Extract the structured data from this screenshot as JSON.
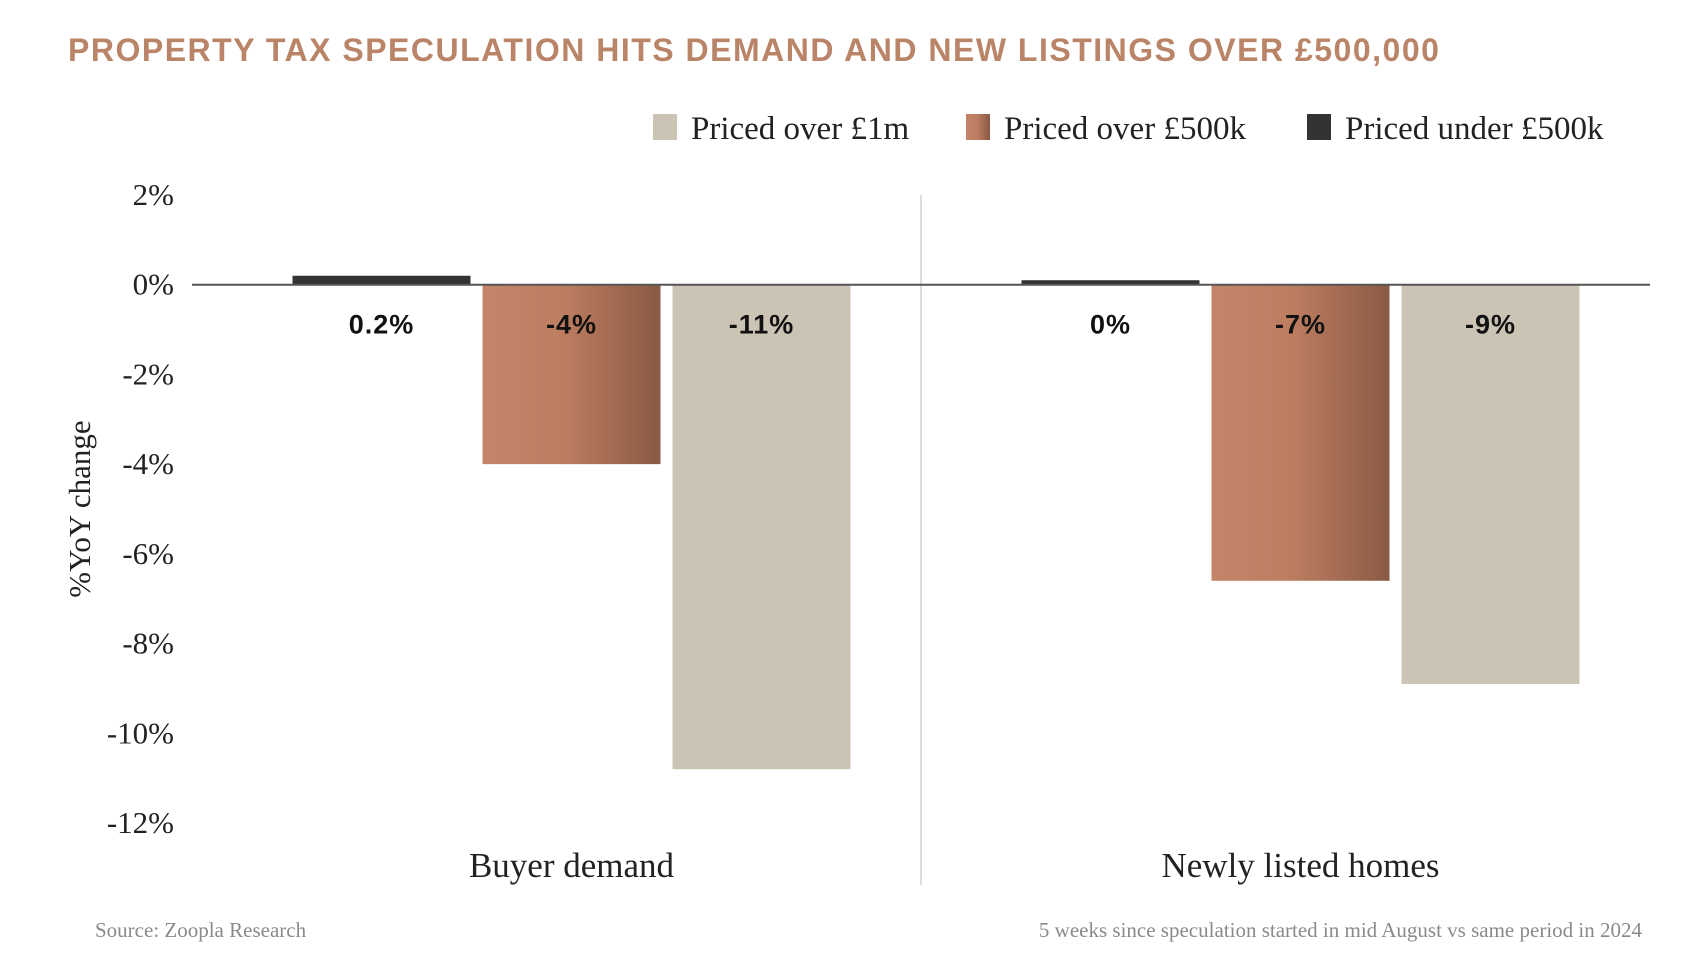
{
  "title": "PROPERTY TAX SPECULATION HITS DEMAND AND NEW LISTINGS OVER £500,000",
  "source": "Source: Zoopla Research",
  "note": "5 weeks since speculation started in mid August vs same period in 2024",
  "colors": {
    "title": "#b98467",
    "over1m": "#cbc4b4",
    "over500k_light": "#c4846a",
    "over500k_dark": "#8a5a44",
    "under500k": "#333333",
    "axis": "#555555",
    "divider": "#dddddd"
  },
  "chart_data": {
    "type": "bar",
    "title": "PROPERTY TAX SPECULATION HITS DEMAND AND NEW LISTINGS OVER £500,000",
    "xlabel": "",
    "ylabel": "%YoY change",
    "ylim": [
      -12,
      2
    ],
    "yticks": [
      2,
      0,
      -2,
      -4,
      -6,
      -8,
      -10,
      -12
    ],
    "ytick_labels": [
      "2%",
      "0%",
      "-2%",
      "-4%",
      "-6%",
      "-8%",
      "-10%",
      "-12%"
    ],
    "categories": [
      "Buyer demand",
      "Newly listed homes"
    ],
    "legend_position": "top-right",
    "series": [
      {
        "name": "Priced under £500k",
        "values": [
          0.2,
          0.1
        ],
        "labels": [
          "0.2%",
          "0%"
        ],
        "color": "#333333"
      },
      {
        "name": "Priced over £500k",
        "values": [
          -4.0,
          -6.6
        ],
        "labels": [
          "-4%",
          "-7%"
        ],
        "color": "#c4846a"
      },
      {
        "name": "Priced over £1m",
        "values": [
          -10.8,
          -8.9
        ],
        "labels": [
          "-11%",
          "-9%"
        ],
        "color": "#cbc4b4"
      }
    ],
    "legend_order": [
      "Priced over £1m",
      "Priced over £500k",
      "Priced under £500k"
    ]
  }
}
